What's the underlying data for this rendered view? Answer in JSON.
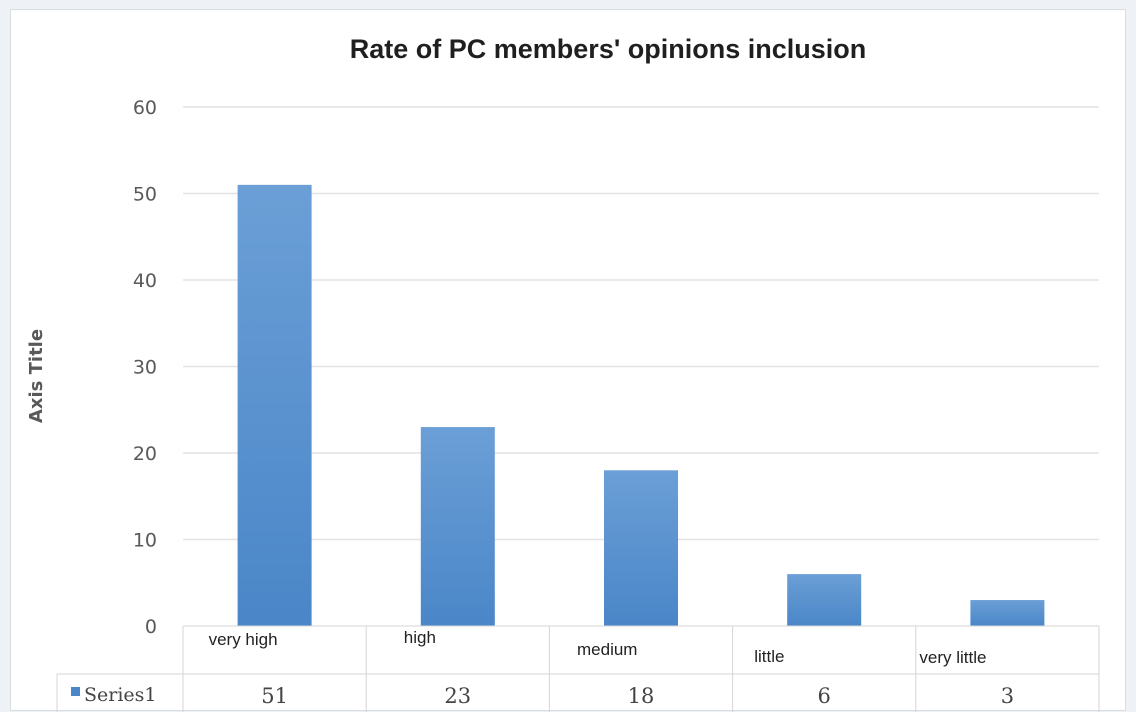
{
  "chart_data": {
    "type": "bar",
    "title": "Rate of PC members' opinions inclusion",
    "xlabel": "",
    "ylabel": "Axis Title",
    "categories": [
      "very high",
      "high",
      "medium",
      "little",
      "very little"
    ],
    "series": [
      {
        "name": "Series1",
        "values": [
          51,
          23,
          18,
          6,
          3
        ]
      }
    ],
    "value_labels": [
      "51",
      "23",
      "18",
      "6",
      "3"
    ],
    "yticks": [
      "0",
      "10",
      "20",
      "30",
      "40",
      "50",
      "60"
    ],
    "ylim": [
      0,
      60
    ],
    "grid": true,
    "legend": "data-table",
    "colors": {
      "bar": "#4a86c8",
      "bar_top": "#6b9fd6",
      "grid": "#e3e3e3",
      "table_border": "#d6d6d6"
    }
  }
}
